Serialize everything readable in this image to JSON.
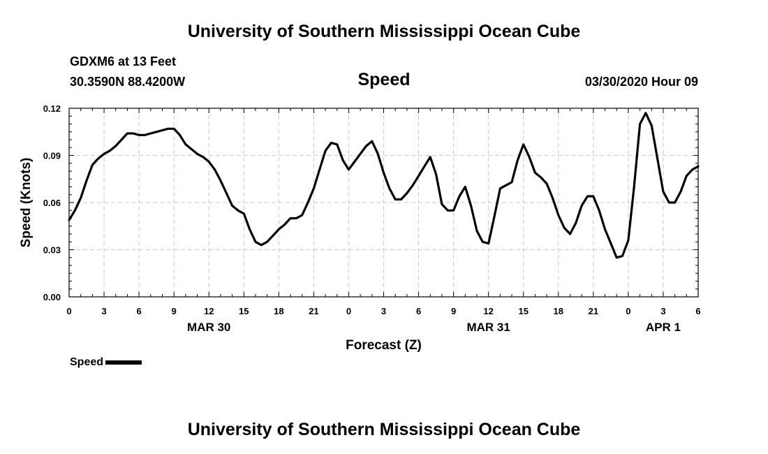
{
  "header": {
    "title": "University of Southern Mississippi Ocean Cube",
    "station": "GDXM6 at 13 Feet",
    "location": "30.3590N 88.4200W",
    "datetime": "03/30/2020 Hour 09"
  },
  "footer": {
    "title": "University of Southern Mississippi Ocean Cube"
  },
  "legend": {
    "label": "Speed",
    "color": "#000000"
  },
  "chart_data": {
    "type": "line",
    "title": "Speed",
    "xlabel": "Forecast (Z)",
    "ylabel": "Speed (Knots)",
    "ylim": [
      0,
      0.12
    ],
    "yticks": [
      "0.00",
      "0.03",
      "0.06",
      "0.09",
      "0.12"
    ],
    "xlim_hours": [
      0,
      54
    ],
    "xticks": [
      "0",
      "3",
      "6",
      "9",
      "12",
      "15",
      "18",
      "21",
      "0",
      "3",
      "6",
      "9",
      "12",
      "15",
      "18",
      "21",
      "0",
      "3",
      "6"
    ],
    "date_labels": [
      {
        "text": "MAR 30",
        "hour": 12
      },
      {
        "text": "MAR 31",
        "hour": 36
      },
      {
        "text": "APR 1",
        "hour": 51
      }
    ],
    "grid": true,
    "series": [
      {
        "name": "Speed",
        "color": "#000000",
        "points": [
          [
            0,
            0.049
          ],
          [
            0.5,
            0.055
          ],
          [
            1,
            0.063
          ],
          [
            1.5,
            0.074
          ],
          [
            2,
            0.084
          ],
          [
            2.5,
            0.088
          ],
          [
            3,
            0.091
          ],
          [
            3.5,
            0.093
          ],
          [
            4,
            0.096
          ],
          [
            4.5,
            0.1
          ],
          [
            5,
            0.104
          ],
          [
            5.5,
            0.104
          ],
          [
            6,
            0.103
          ],
          [
            6.5,
            0.103
          ],
          [
            7,
            0.104
          ],
          [
            7.5,
            0.105
          ],
          [
            8,
            0.106
          ],
          [
            8.5,
            0.107
          ],
          [
            9,
            0.107
          ],
          [
            9.5,
            0.103
          ],
          [
            10,
            0.097
          ],
          [
            10.5,
            0.094
          ],
          [
            11,
            0.091
          ],
          [
            11.5,
            0.089
          ],
          [
            12,
            0.086
          ],
          [
            12.5,
            0.081
          ],
          [
            13,
            0.074
          ],
          [
            13.5,
            0.066
          ],
          [
            14,
            0.058
          ],
          [
            14.5,
            0.055
          ],
          [
            15,
            0.053
          ],
          [
            15.5,
            0.043
          ],
          [
            16,
            0.035
          ],
          [
            16.5,
            0.033
          ],
          [
            17,
            0.035
          ],
          [
            17.5,
            0.039
          ],
          [
            18,
            0.043
          ],
          [
            18.5,
            0.046
          ],
          [
            19,
            0.05
          ],
          [
            19.5,
            0.05
          ],
          [
            20,
            0.052
          ],
          [
            20.5,
            0.06
          ],
          [
            21,
            0.069
          ],
          [
            21.5,
            0.081
          ],
          [
            22,
            0.093
          ],
          [
            22.5,
            0.098
          ],
          [
            23,
            0.097
          ],
          [
            23.5,
            0.087
          ],
          [
            24,
            0.081
          ],
          [
            24.5,
            0.086
          ],
          [
            25,
            0.091
          ],
          [
            25.5,
            0.096
          ],
          [
            26,
            0.099
          ],
          [
            26.5,
            0.091
          ],
          [
            27,
            0.079
          ],
          [
            27.5,
            0.069
          ],
          [
            28,
            0.062
          ],
          [
            28.5,
            0.062
          ],
          [
            29,
            0.066
          ],
          [
            29.5,
            0.071
          ],
          [
            30,
            0.077
          ],
          [
            30.5,
            0.083
          ],
          [
            31,
            0.089
          ],
          [
            31.5,
            0.078
          ],
          [
            32,
            0.059
          ],
          [
            32.5,
            0.055
          ],
          [
            33,
            0.055
          ],
          [
            33.5,
            0.064
          ],
          [
            34,
            0.07
          ],
          [
            34.5,
            0.058
          ],
          [
            35,
            0.042
          ],
          [
            35.5,
            0.035
          ],
          [
            36,
            0.034
          ],
          [
            36.5,
            0.051
          ],
          [
            37,
            0.069
          ],
          [
            37.5,
            0.071
          ],
          [
            38,
            0.073
          ],
          [
            38.5,
            0.087
          ],
          [
            39,
            0.097
          ],
          [
            39.5,
            0.089
          ],
          [
            40,
            0.079
          ],
          [
            40.5,
            0.076
          ],
          [
            41,
            0.072
          ],
          [
            41.5,
            0.063
          ],
          [
            42,
            0.052
          ],
          [
            42.5,
            0.044
          ],
          [
            43,
            0.04
          ],
          [
            43.5,
            0.047
          ],
          [
            44,
            0.058
          ],
          [
            44.5,
            0.064
          ],
          [
            45,
            0.064
          ],
          [
            45.5,
            0.055
          ],
          [
            46,
            0.043
          ],
          [
            46.5,
            0.034
          ],
          [
            47,
            0.025
          ],
          [
            47.5,
            0.026
          ],
          [
            48,
            0.036
          ],
          [
            48.5,
            0.07
          ],
          [
            49,
            0.11
          ],
          [
            49.5,
            0.117
          ],
          [
            50,
            0.109
          ],
          [
            50.5,
            0.088
          ],
          [
            51,
            0.067
          ],
          [
            51.5,
            0.06
          ],
          [
            52,
            0.06
          ],
          [
            52.5,
            0.067
          ],
          [
            53,
            0.077
          ],
          [
            53.5,
            0.081
          ],
          [
            54,
            0.083
          ]
        ]
      }
    ]
  }
}
